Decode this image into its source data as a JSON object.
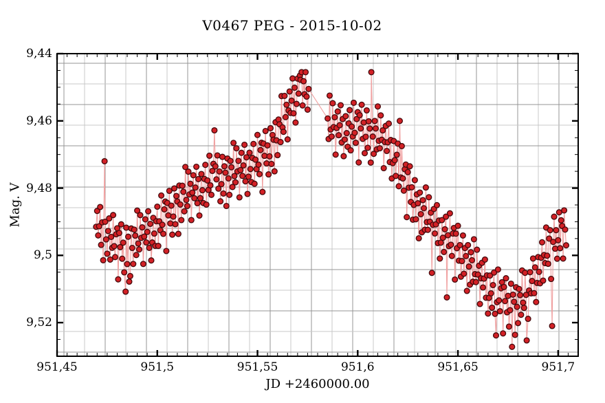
{
  "chart_data": {
    "type": "scatter",
    "title": "V0467 PEG - 2015-10-02",
    "xlabel": "JD +2460000.00",
    "ylabel": "Mag. V",
    "x_range": [
      951.45,
      951.71
    ],
    "y_range": [
      9.44,
      9.53
    ],
    "y_axis_inverted_magnitudes": true,
    "x_major_ticks": [
      951.45,
      951.5,
      951.55,
      951.6,
      951.65,
      951.7
    ],
    "x_major_labels": [
      "951,45",
      "951,5",
      "951,55",
      "951,6",
      "951,65",
      "951,7"
    ],
    "y_major_ticks": [
      9.44,
      9.46,
      9.48,
      9.5,
      9.52
    ],
    "y_major_labels": [
      "9,44",
      "9,46",
      "9,48",
      "9,5",
      "9,52"
    ],
    "x_minor_step": 0.005,
    "y_minor_step": 0.005,
    "grid": {
      "spacing_px": 30,
      "color_dark": "#949494",
      "color_light": "#c8c8c8"
    },
    "style": {
      "background": "#ffffff",
      "frame_color": "#000000",
      "point_fill": "#d32126",
      "point_edge": "#43090c",
      "line_color": "#f0a0a0"
    },
    "series": {
      "name": "Mag. V",
      "start_jd": 951.4695,
      "end_jd": 951.704,
      "cadence_jd": 0.0005,
      "gap_jd": [
        951.5755,
        951.5845
      ],
      "clamp_mag": [
        9.4455,
        9.528
      ],
      "trend_points": [
        [
          951.4695,
          9.4905
        ],
        [
          951.474,
          9.493
        ],
        [
          951.479,
          9.4955
        ],
        [
          951.483,
          9.4972
        ],
        [
          951.487,
          9.496
        ],
        [
          951.492,
          9.4938
        ],
        [
          951.497,
          9.4925
        ],
        [
          951.502,
          9.4892
        ],
        [
          951.507,
          9.4862
        ],
        [
          951.512,
          9.4825
        ],
        [
          951.517,
          9.4805
        ],
        [
          951.522,
          9.4788
        ],
        [
          951.527,
          9.477
        ],
        [
          951.532,
          9.4758
        ],
        [
          951.537,
          9.4748
        ],
        [
          951.542,
          9.4735
        ],
        [
          951.547,
          9.4722
        ],
        [
          951.552,
          9.4705
        ],
        [
          951.557,
          9.4668
        ],
        [
          951.561,
          9.462
        ],
        [
          951.565,
          9.4565
        ],
        [
          951.569,
          9.4515
        ],
        [
          951.5715,
          9.4488
        ],
        [
          951.573,
          9.4482
        ],
        [
          951.5755,
          9.4525
        ],
        [
          951.5845,
          9.4602
        ],
        [
          951.59,
          9.4612
        ],
        [
          951.596,
          9.4618
        ],
        [
          951.602,
          9.4612
        ],
        [
          951.608,
          9.4628
        ],
        [
          951.614,
          9.4655
        ],
        [
          951.618,
          9.469
        ],
        [
          951.622,
          9.4745
        ],
        [
          951.626,
          9.4795
        ],
        [
          951.63,
          9.4845
        ],
        [
          951.634,
          9.4878
        ],
        [
          951.638,
          9.4902
        ],
        [
          951.642,
          9.4925
        ],
        [
          951.646,
          9.4945
        ],
        [
          951.65,
          9.4972
        ],
        [
          951.654,
          9.5002
        ],
        [
          951.658,
          9.5032
        ],
        [
          951.662,
          9.5062
        ],
        [
          951.666,
          9.509
        ],
        [
          951.67,
          9.5112
        ],
        [
          951.674,
          9.5128
        ],
        [
          951.678,
          9.5138
        ],
        [
          951.682,
          9.5125
        ],
        [
          951.686,
          9.509
        ],
        [
          951.69,
          9.5035
        ],
        [
          951.695,
          9.4975
        ],
        [
          951.7,
          9.4925
        ],
        [
          951.704,
          9.49
        ]
      ],
      "noise_mmag_cycle": [
        1,
        -4,
        3,
        0,
        -6,
        5,
        -2,
        9,
        4,
        -3,
        2,
        6,
        -1,
        -5,
        7,
        0,
        3,
        -7,
        2,
        5,
        -2,
        -4,
        11,
        -3,
        1,
        -6,
        4,
        -1,
        8,
        3,
        -5,
        6,
        -2,
        0,
        10,
        -4,
        2,
        7,
        -3,
        -1,
        5,
        -8,
        2,
        4,
        -6,
        1,
        -2,
        9
      ],
      "outliers": [
        [
          951.4737,
          9.472
        ],
        [
          951.4842,
          9.5108
        ],
        [
          951.486,
          9.5078
        ],
        [
          951.5285,
          9.4628
        ],
        [
          951.5712,
          9.4465
        ],
        [
          951.6068,
          9.4455
        ],
        [
          951.621,
          9.46
        ],
        [
          951.637,
          9.5052
        ],
        [
          951.6445,
          9.5125
        ],
        [
          951.669,
          9.5238
        ],
        [
          951.677,
          9.5272
        ],
        [
          951.6843,
          9.5253
        ],
        [
          951.697,
          9.521
        ]
      ]
    }
  }
}
